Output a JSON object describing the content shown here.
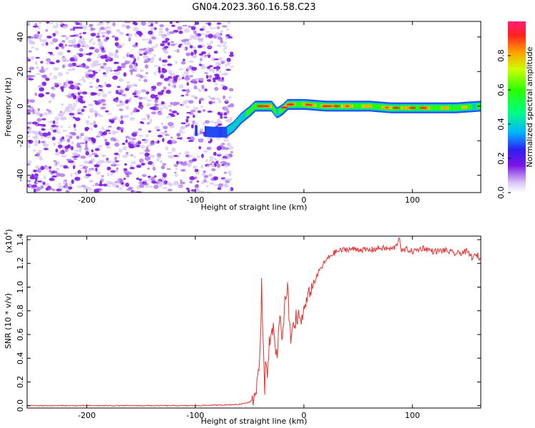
{
  "figure": {
    "title": "GN04.2023.360.16.58.C23"
  },
  "chart_data": [
    {
      "type": "heatmap",
      "xlabel": "Height of straight line (km)",
      "ylabel": "Frequency (Hz)",
      "xlim": [
        -255,
        163
      ],
      "ylim": [
        -50,
        49
      ],
      "xticks": [
        -200,
        -100,
        0,
        100
      ],
      "yticks": [
        -40,
        -20,
        0,
        20,
        40
      ],
      "colorbar": {
        "label": "Normalized spectral amplitude",
        "range": [
          0,
          1
        ],
        "ticks": [
          0.0,
          0.2,
          0.4,
          0.6,
          0.8
        ]
      },
      "noise_region_x": [
        -255,
        -70
      ],
      "signal_trace": {
        "x": [
          -100,
          -85,
          -72,
          -65,
          -58,
          -50,
          -45,
          -40,
          -35,
          -30,
          -25,
          -20,
          -15,
          -10,
          0,
          20,
          40,
          60,
          80,
          100,
          120,
          140,
          163
        ],
        "y": [
          -14,
          -15,
          -15,
          -12,
          -7,
          -3,
          0,
          0,
          0,
          0,
          -4,
          -2,
          1,
          1,
          1,
          0,
          0,
          0,
          -1,
          -1,
          -1,
          -1,
          0
        ],
        "amplitude": [
          0.3,
          0.35,
          0.4,
          0.5,
          0.6,
          0.7,
          0.75,
          0.85,
          0.9,
          0.8,
          0.7,
          0.9,
          0.95,
          0.95,
          0.95,
          1.0,
          0.9,
          0.85,
          0.9,
          0.85,
          0.85,
          0.8,
          0.75
        ]
      }
    },
    {
      "type": "line",
      "xlabel": "Height of straight line (km)",
      "ylabel": "SNR (10 * v/v)",
      "y_multiplier": "(x10",
      "y_multiplier_exp": "4",
      "y_multiplier_close": ")",
      "xlim": [
        -255,
        163
      ],
      "ylim": [
        -0.02,
        1.43
      ],
      "xticks": [
        -200,
        -100,
        0,
        100
      ],
      "yticks": [
        0.0,
        0.2,
        0.4,
        0.6,
        0.8,
        1.0,
        1.2,
        1.4
      ],
      "color": "#e83030",
      "series": [
        {
          "x": [
            -255,
            -200,
            -150,
            -100,
            -60,
            -50,
            -45,
            -42,
            -40,
            -39,
            -38,
            -36,
            -35,
            -34,
            -32,
            -30,
            -28,
            -25,
            -22,
            -20,
            -18,
            -15,
            -12,
            -10,
            -8,
            -5,
            -3,
            0,
            5,
            10,
            15,
            20,
            25,
            30,
            40,
            50,
            60,
            70,
            80,
            85,
            88,
            90,
            95,
            100,
            110,
            120,
            130,
            140,
            150,
            155,
            160,
            163
          ],
          "y": [
            0.0,
            0.0,
            0.0,
            0.0,
            0.01,
            0.03,
            0.08,
            0.25,
            0.5,
            1.0,
            0.6,
            0.15,
            0.45,
            0.2,
            0.5,
            0.55,
            0.7,
            0.4,
            0.75,
            0.5,
            0.8,
            1.04,
            0.5,
            0.75,
            0.6,
            0.8,
            0.7,
            0.8,
            0.95,
            1.05,
            1.15,
            1.22,
            1.27,
            1.3,
            1.32,
            1.32,
            1.31,
            1.33,
            1.32,
            1.34,
            1.43,
            1.3,
            1.32,
            1.3,
            1.33,
            1.3,
            1.31,
            1.28,
            1.3,
            1.25,
            1.27,
            1.22
          ]
        }
      ]
    }
  ]
}
